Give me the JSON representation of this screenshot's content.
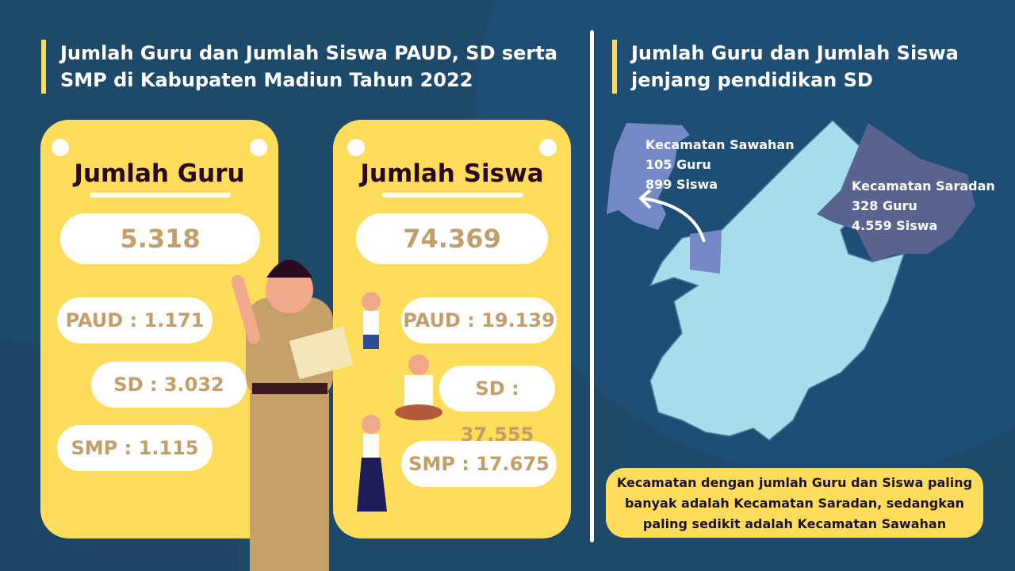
{
  "left": {
    "title": "Jumlah Guru dan Jumlah Siswa PAUD, SD serta SMP di Kabupaten Madiun Tahun 2022",
    "guru": {
      "heading": "Jumlah Guru",
      "total": "5.318",
      "paud": "PAUD : 1.171",
      "sd": "SD : 3.032",
      "smp": "SMP : 1.115"
    },
    "siswa": {
      "heading": "Jumlah Siswa",
      "total": "74.369",
      "paud": "PAUD : 19.139",
      "sd": "SD : 37.555",
      "smp": "SMP : 17.675"
    }
  },
  "right": {
    "title": "Jumlah Guru dan Jumlah Siswa jenjang pendidikan SD",
    "sawahan": {
      "name": "Kecamatan Sawahan",
      "guru": "105 Guru",
      "siswa": "899 Siswa"
    },
    "saradan": {
      "name": "Kecamatan Saradan",
      "guru": "328 Guru",
      "siswa": "4.559 Siswa"
    },
    "note": "Kecamatan dengan jumlah Guru dan Siswa paling banyak adalah Kecamatan Saradan, sedangkan paling sedikit adalah Kecamatan Sawahan"
  },
  "colors": {
    "background": "#1d4a6b",
    "card": "#fedd5b",
    "value_text": "#c29f69",
    "map": "#a6dcec",
    "sawahan": "#7589c6",
    "saradan": "#58648f"
  }
}
